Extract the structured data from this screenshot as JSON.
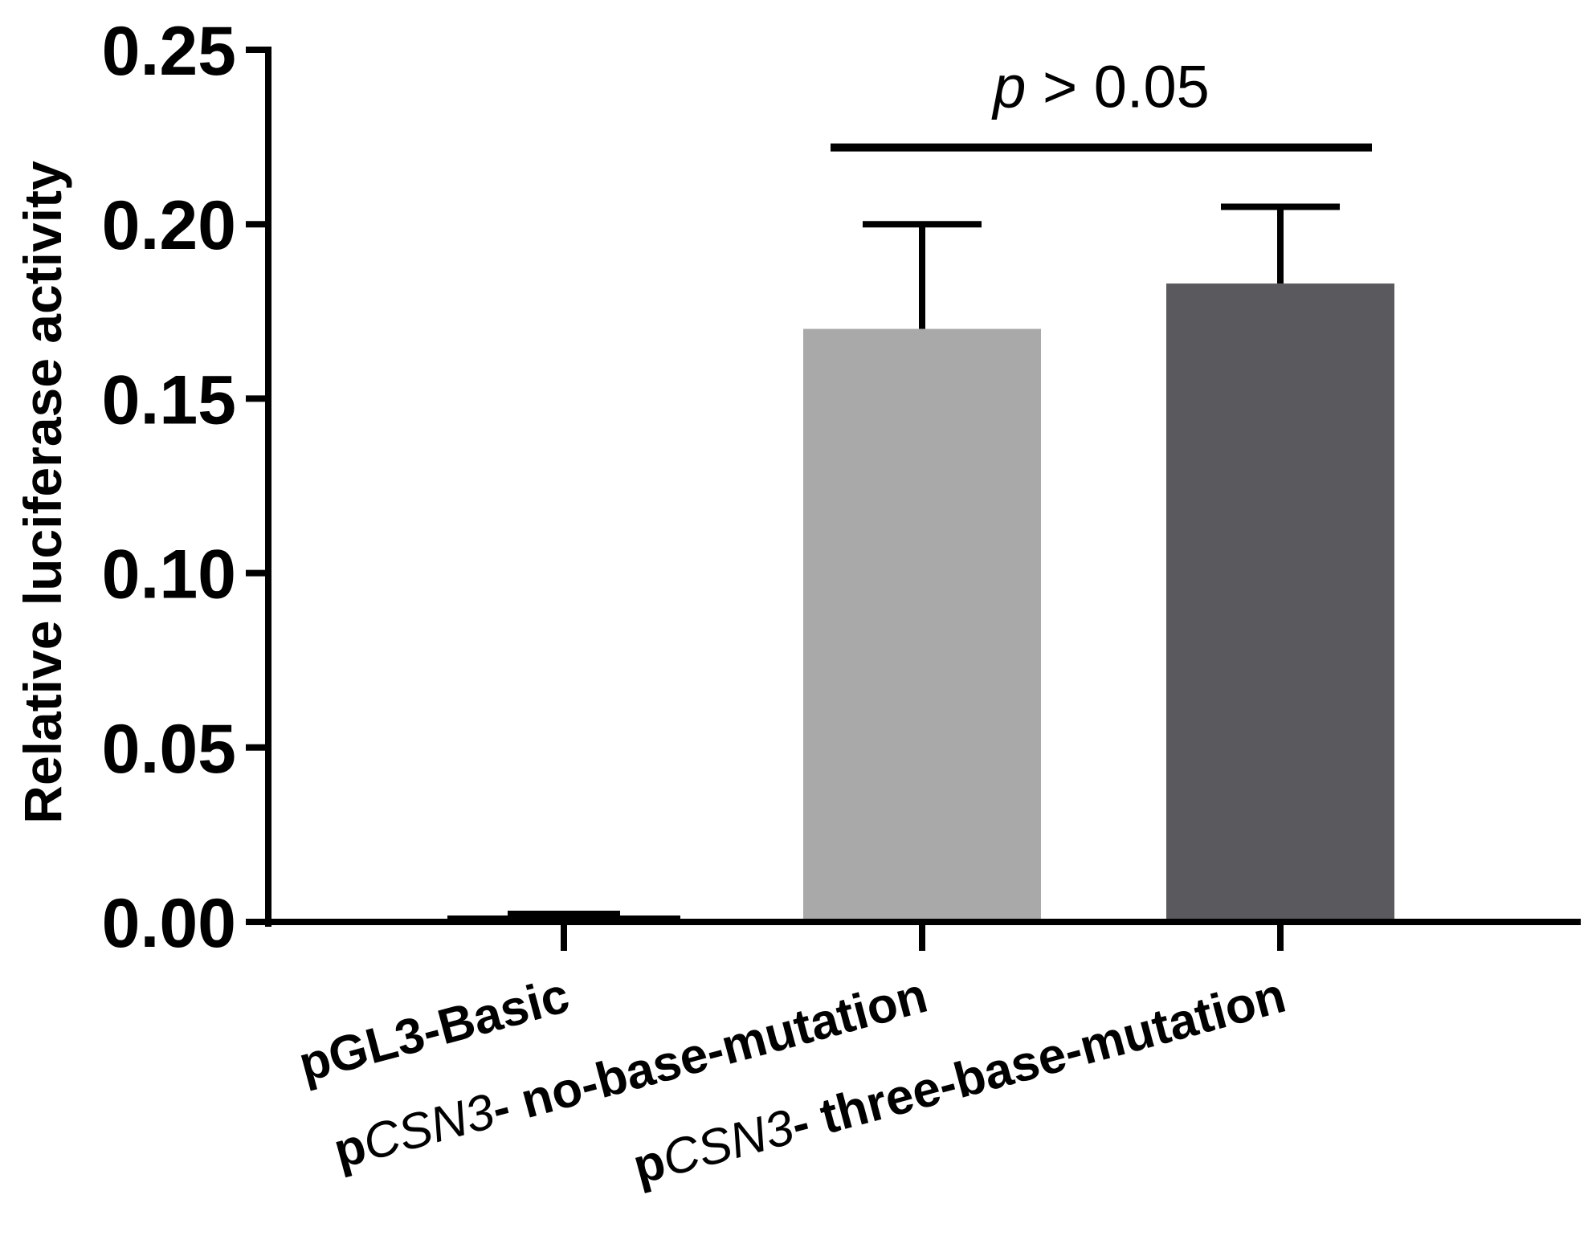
{
  "chart_data": {
    "type": "bar",
    "title": "",
    "xlabel": "",
    "ylabel": "Relative luciferase activity",
    "ylim": [
      0,
      0.25
    ],
    "yticks": [
      "0.00",
      "0.05",
      "0.10",
      "0.15",
      "0.20",
      "0.25"
    ],
    "grid": false,
    "legend": "none",
    "categories": [
      {
        "prefix": "pGL3-Basic",
        "gene": "",
        "suffix": ""
      },
      {
        "prefix": "p",
        "gene": "CSN3",
        "suffix": "- no-base-mutation"
      },
      {
        "prefix": "p",
        "gene": "CSN3",
        "suffix": "- three-base-mutation"
      }
    ],
    "values": [
      0.003,
      0.17,
      0.183
    ],
    "errors": [
      0.001,
      0.03,
      0.022
    ],
    "colors": [
      "#000000",
      "#a9a9a9",
      "#5a595e"
    ],
    "annotation": {
      "p": "p",
      "text": " > 0.05",
      "from_category": 1,
      "to_category": 2,
      "y": 0.222
    }
  }
}
